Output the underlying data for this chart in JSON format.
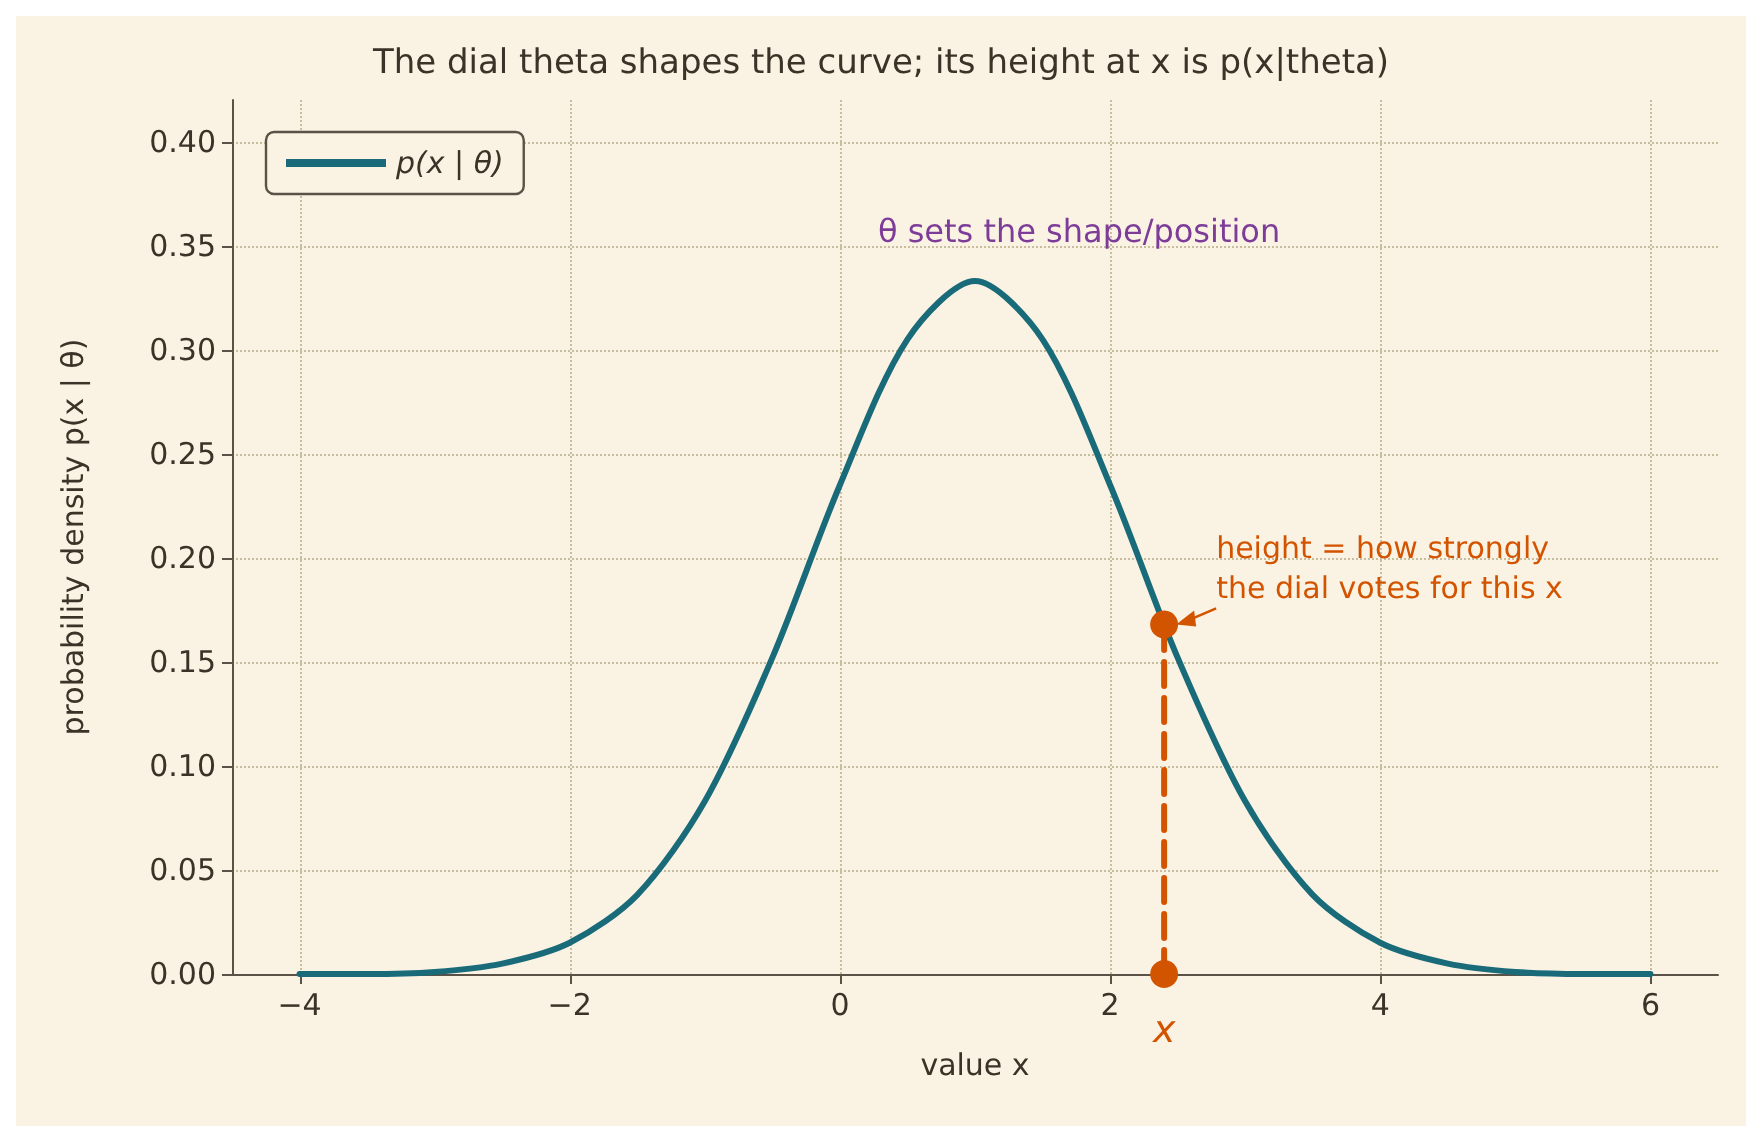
{
  "chart_data": {
    "type": "line",
    "title": "The dial theta shapes the curve; its height at x is p(x|theta)",
    "xlabel": "value x",
    "ylabel": "probability density p(x | θ)",
    "series": [
      {
        "name": "p(x | θ)",
        "color": "#1a6b7a",
        "x": [
          -4,
          -3.5,
          -3,
          -2.5,
          -2,
          -1.5,
          -1,
          -0.5,
          0,
          0.5,
          1,
          1.5,
          2,
          2.5,
          3,
          3.5,
          4,
          4.5,
          5,
          5.5,
          6
        ],
        "values": [
          0,
          0,
          0.001,
          0.005,
          0.015,
          0.038,
          0.083,
          0.152,
          0.235,
          0.305,
          0.333,
          0.305,
          0.235,
          0.152,
          0.083,
          0.038,
          0.015,
          0.005,
          0.001,
          0,
          0
        ],
        "marker": "none",
        "line_style": "solid"
      },
      {
        "color": "#d35400",
        "x": [
          2.4,
          2.4
        ],
        "values": [
          0,
          0.168
        ],
        "marker": "circle",
        "line_style": "dashed"
      }
    ],
    "annotations": [
      "θ sets the shape/position",
      {
        "text": "height = how strongly\nthe dial votes for this x",
        "x": 2.4,
        "y": 0.168
      },
      {
        "text": "x",
        "x": 2.4,
        "y": 0
      }
    ],
    "xlim": [
      -4.5,
      6.5
    ],
    "xticks": [
      -4,
      -2,
      0,
      2,
      4,
      6
    ],
    "ylim": [
      0,
      0.42
    ],
    "yticks": [
      {
        "value": 0,
        "label": "0.00"
      },
      {
        "value": 0.05,
        "label": "0.05"
      },
      {
        "value": 0.1,
        "label": "0.10"
      },
      {
        "value": 0.15,
        "label": "0.15"
      },
      {
        "value": 0.2,
        "label": "0.20"
      },
      {
        "value": 0.25,
        "label": "0.25"
      },
      {
        "value": 0.3,
        "label": "0.30"
      },
      {
        "value": 0.35,
        "label": "0.35"
      },
      {
        "value": 0.4,
        "label": "0.40"
      }
    ],
    "grid": true,
    "legend": "top left"
  }
}
